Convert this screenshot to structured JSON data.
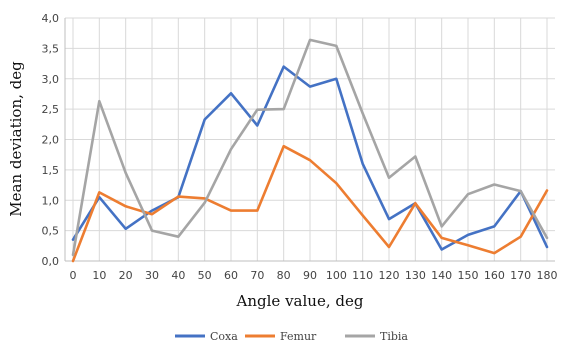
{
  "chart_data": {
    "type": "line",
    "xlabel": "Angle value, deg",
    "ylabel": "Mean deviation, deg",
    "x": [
      0,
      10,
      20,
      30,
      40,
      50,
      60,
      70,
      80,
      90,
      100,
      110,
      120,
      130,
      140,
      150,
      160,
      170,
      180
    ],
    "x_tick_labels": [
      "0",
      "10",
      "20",
      "30",
      "40",
      "50",
      "60",
      "70",
      "80",
      "90",
      "100",
      "110",
      "120",
      "130",
      "140",
      "150",
      "160",
      "170",
      "180"
    ],
    "ylim": [
      0,
      4
    ],
    "y_ticks": [
      0,
      0.5,
      1,
      1.5,
      2,
      2.5,
      3,
      3.5,
      4
    ],
    "y_tick_labels": [
      "0,0",
      "0,5",
      "1,0",
      "1,5",
      "2,0",
      "2,5",
      "3,0",
      "3,5",
      "4,0"
    ],
    "grid": true,
    "legend_position": "bottom",
    "series": [
      {
        "name": "Coxa",
        "color": "#4472c4",
        "values": [
          0.35,
          1.05,
          0.53,
          0.83,
          1.05,
          2.33,
          2.76,
          2.23,
          3.2,
          2.87,
          3.0,
          1.6,
          0.69,
          0.95,
          0.19,
          0.43,
          0.57,
          1.15,
          0.23
        ]
      },
      {
        "name": "Femur",
        "color": "#ed7d31",
        "values": [
          0.0,
          1.13,
          0.9,
          0.77,
          1.06,
          1.03,
          0.83,
          0.83,
          1.89,
          1.66,
          1.28,
          0.75,
          0.23,
          0.95,
          0.38,
          0.26,
          0.13,
          0.4,
          1.16
        ]
      },
      {
        "name": "Tibia",
        "color": "#a5a5a5",
        "values": [
          0.1,
          2.63,
          1.45,
          0.5,
          0.4,
          0.96,
          1.84,
          2.49,
          2.5,
          3.64,
          3.54,
          2.43,
          1.37,
          1.72,
          0.57,
          1.1,
          1.26,
          1.15,
          0.38
        ]
      }
    ]
  }
}
